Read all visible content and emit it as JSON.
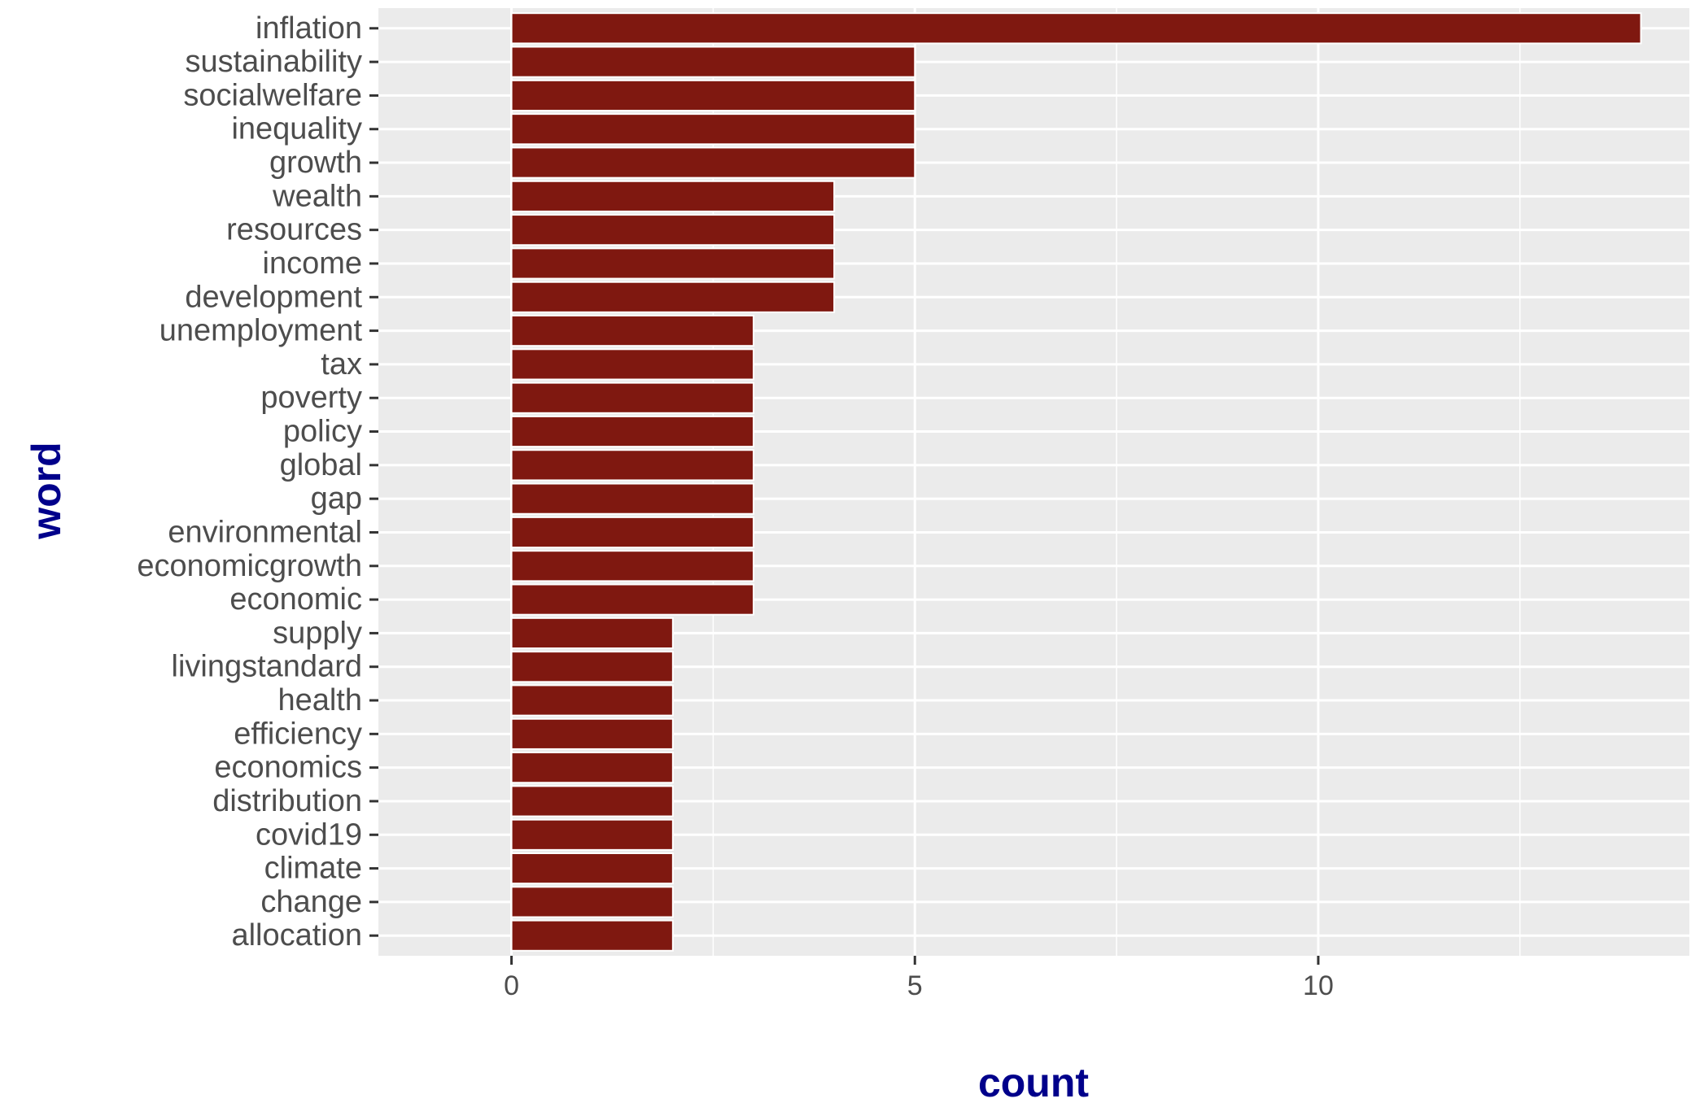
{
  "chart_data": {
    "type": "bar",
    "orientation": "horizontal",
    "xlabel": "count",
    "ylabel": "word",
    "xlim": [
      -1.65,
      14.6
    ],
    "xticks": [
      0,
      5,
      10
    ],
    "grid": true,
    "legend": "none",
    "colors": {
      "bar": "#7f1810",
      "bar_outline": "#ffffff",
      "panel": "#ebebeb",
      "grid": "#ffffff",
      "tick_text": "#4d4d4d",
      "axis_title": "#00008b"
    },
    "categories": [
      "inflation",
      "sustainability",
      "socialwelfare",
      "inequality",
      "growth",
      "wealth",
      "resources",
      "income",
      "development",
      "unemployment",
      "tax",
      "poverty",
      "policy",
      "global",
      "gap",
      "environmental",
      "economicgrowth",
      "economic",
      "supply",
      "livingstandard",
      "health",
      "efficiency",
      "economics",
      "distribution",
      "covid19",
      "climate",
      "change",
      "allocation"
    ],
    "values": [
      14,
      5,
      5,
      5,
      5,
      4,
      4,
      4,
      4,
      3,
      3,
      3,
      3,
      3,
      3,
      3,
      3,
      3,
      2,
      2,
      2,
      2,
      2,
      2,
      2,
      2,
      2,
      2
    ]
  }
}
